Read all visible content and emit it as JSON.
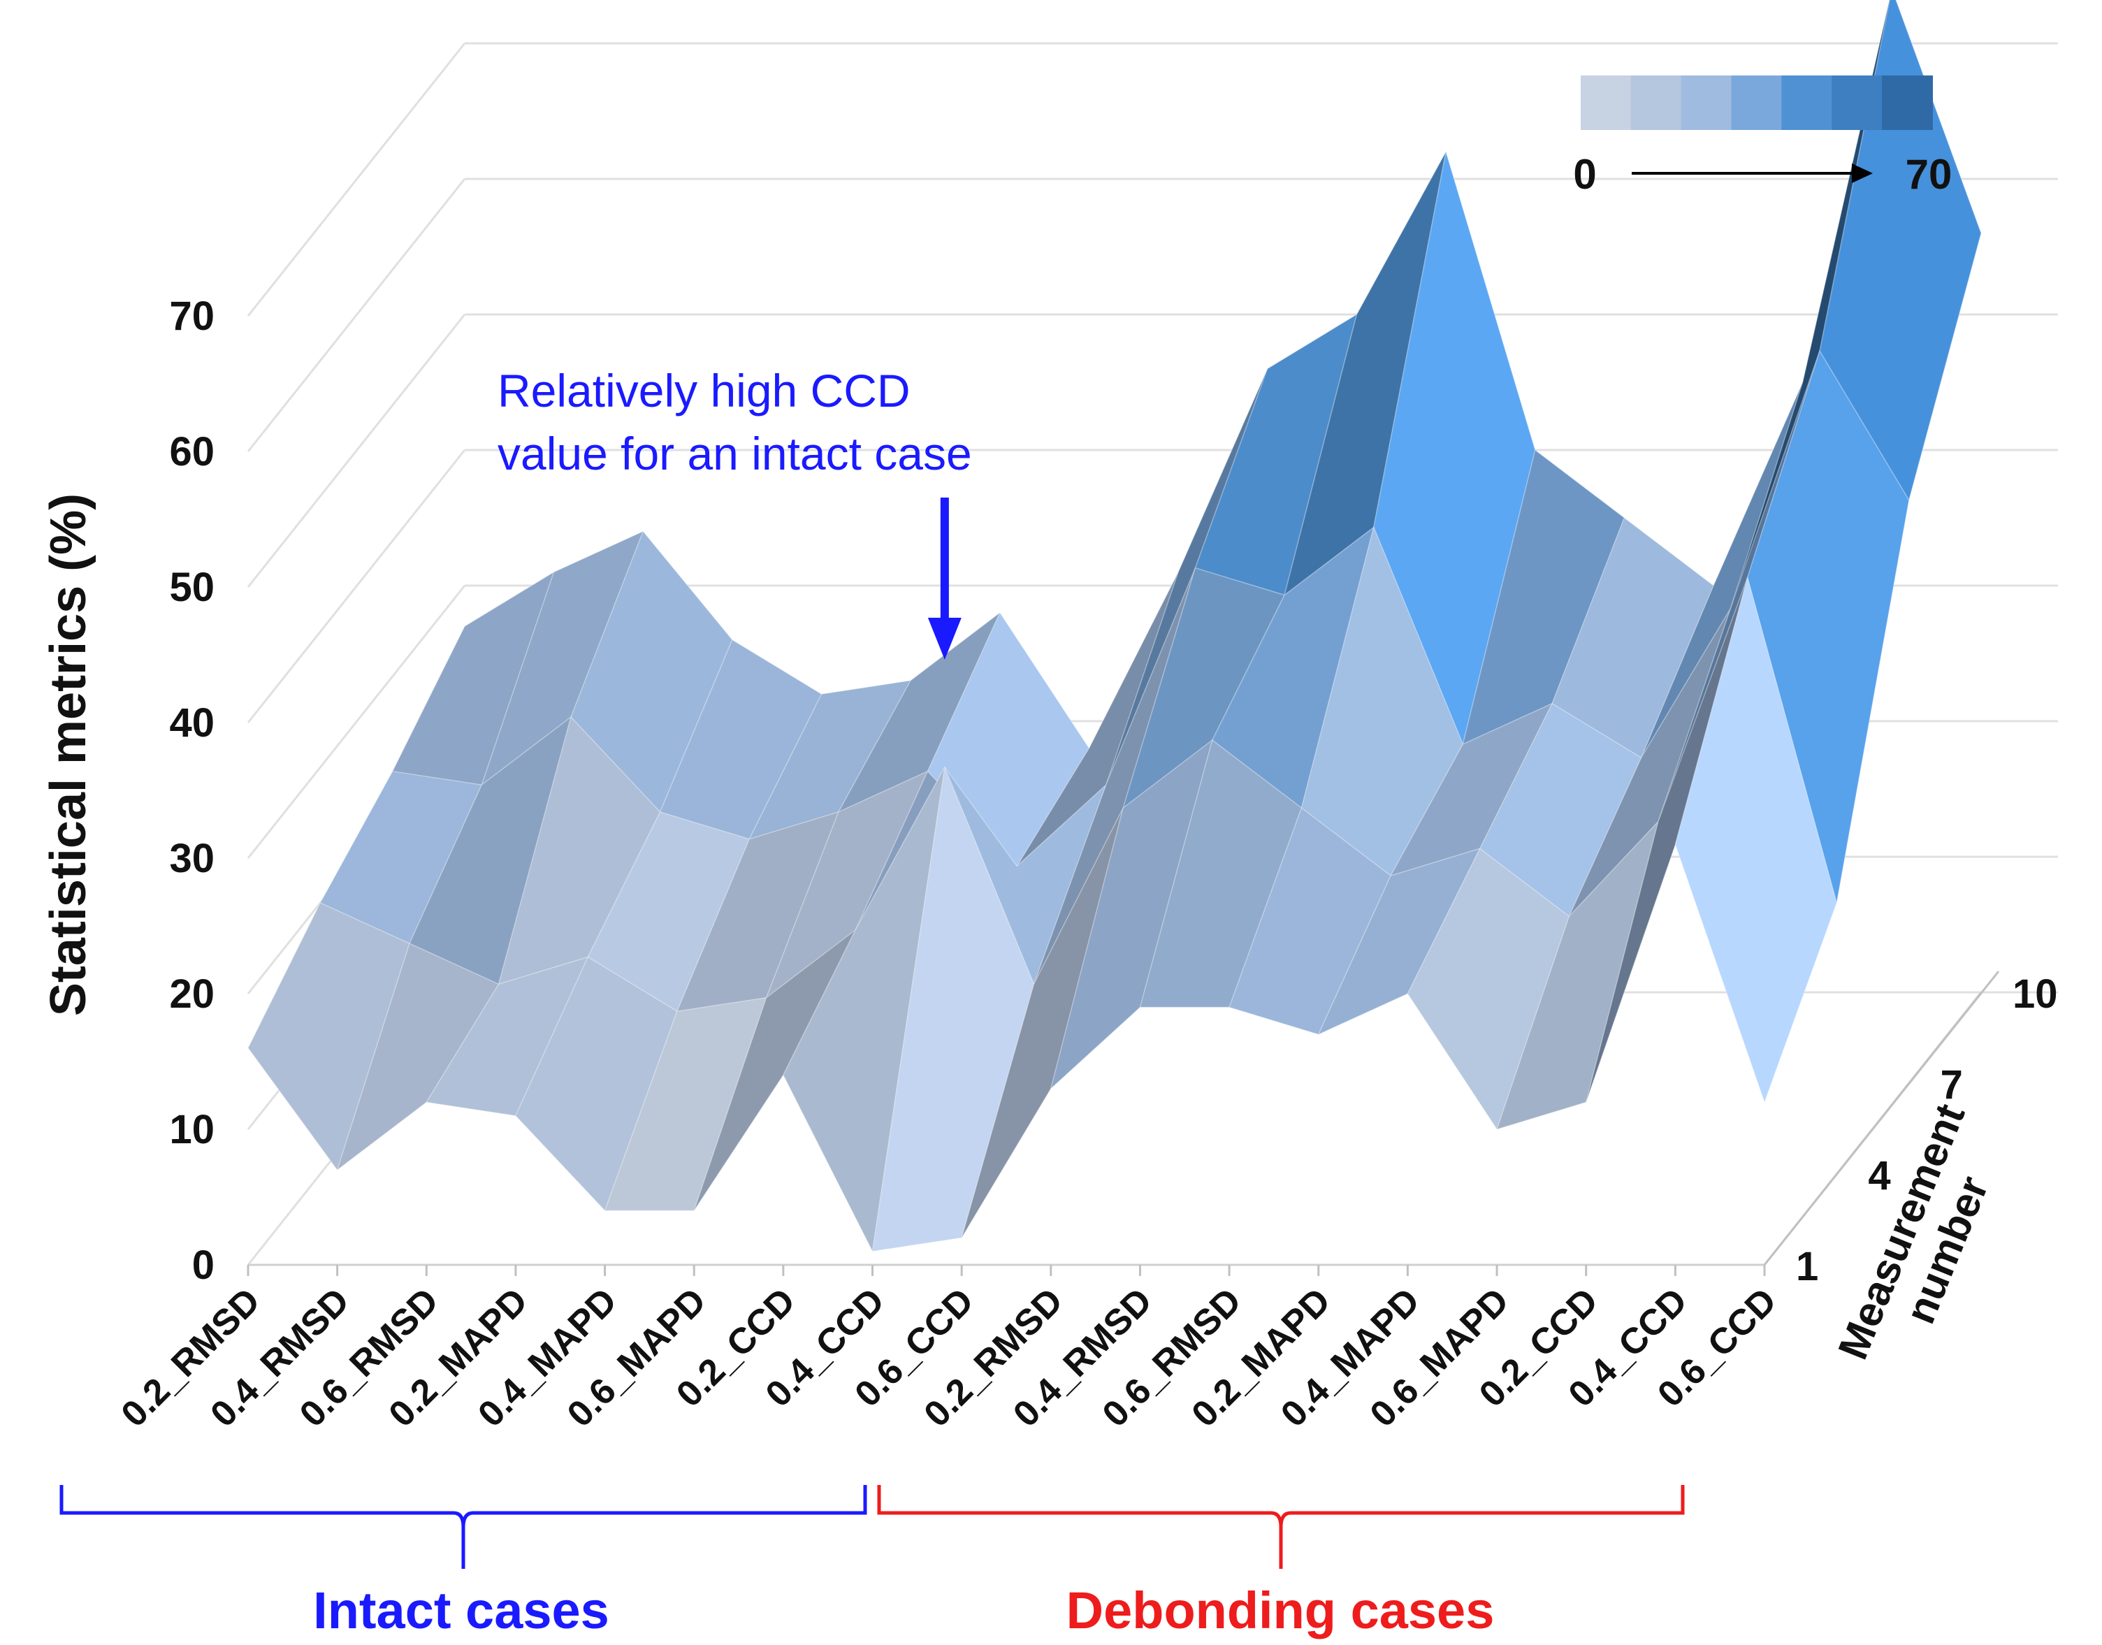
{
  "chart_data": {
    "type": "surface",
    "ylabel": "Statistical metrics (%)",
    "zlabel": [
      "Measurement",
      "number"
    ],
    "ylim": [
      0,
      70
    ],
    "yticks": [
      "0",
      "10",
      "20",
      "30",
      "40",
      "50",
      "60",
      "70"
    ],
    "categories": [
      "0.2_RMSD",
      "0.4_RMSD",
      "0.6_RMSD",
      "0.2_MAPD",
      "0.4_MAPD",
      "0.6_MAPD",
      "0.2_CCD",
      "0.4_CCD",
      "0.6_CCD",
      "0.2_RMSD",
      "0.4_RMSD",
      "0.6_RMSD",
      "0.2_MAPD",
      "0.4_MAPD",
      "0.6_MAPD",
      "0.2_CCD",
      "0.4_CCD",
      "0.6_CCD"
    ],
    "depth_ticks": [
      "1",
      "4",
      "7",
      "10"
    ],
    "depth_values": [
      1,
      4,
      7,
      10
    ],
    "colorbar": {
      "min_label": "0",
      "max_label": "70",
      "colors": [
        "#c7d2e3",
        "#b5c6df",
        "#9fbbe0",
        "#7aa8dc",
        "#4f91d3",
        "#3d7fc0",
        "#2f6aa6"
      ]
    },
    "annotation": {
      "line1": "Relatively high CCD",
      "line2": "value for an intact case",
      "category_index": 7,
      "value": 44
    },
    "groups": [
      {
        "label": "Intact cases",
        "color": "#1a1aff",
        "from": 0,
        "to": 8
      },
      {
        "label": "Debonding cases",
        "color": "#ee1c1c",
        "from": 9,
        "to": 17
      }
    ],
    "series": [
      {
        "measurement": 1,
        "values": [
          16,
          7,
          12,
          11,
          4,
          4,
          14,
          1,
          2,
          13,
          19,
          19,
          17,
          20,
          10,
          12,
          31,
          12
        ]
      },
      {
        "measurement": 4,
        "values": [
          20,
          17,
          14,
          16,
          12,
          13,
          18,
          30,
          14,
          27,
          32,
          27,
          22,
          24,
          19,
          26,
          44,
          20
        ]
      },
      {
        "measurement": 7,
        "values": [
          23,
          22,
          27,
          20,
          18,
          20,
          23,
          16,
          22,
          38,
          36,
          41,
          25,
          28,
          24,
          35,
          54,
          43
        ]
      },
      {
        "measurement": 10,
        "values": [
          27,
          31,
          34,
          26,
          22,
          23,
          28,
          18,
          31,
          46,
          50,
          62,
          40,
          35,
          30,
          45,
          74,
          56
        ]
      }
    ]
  }
}
